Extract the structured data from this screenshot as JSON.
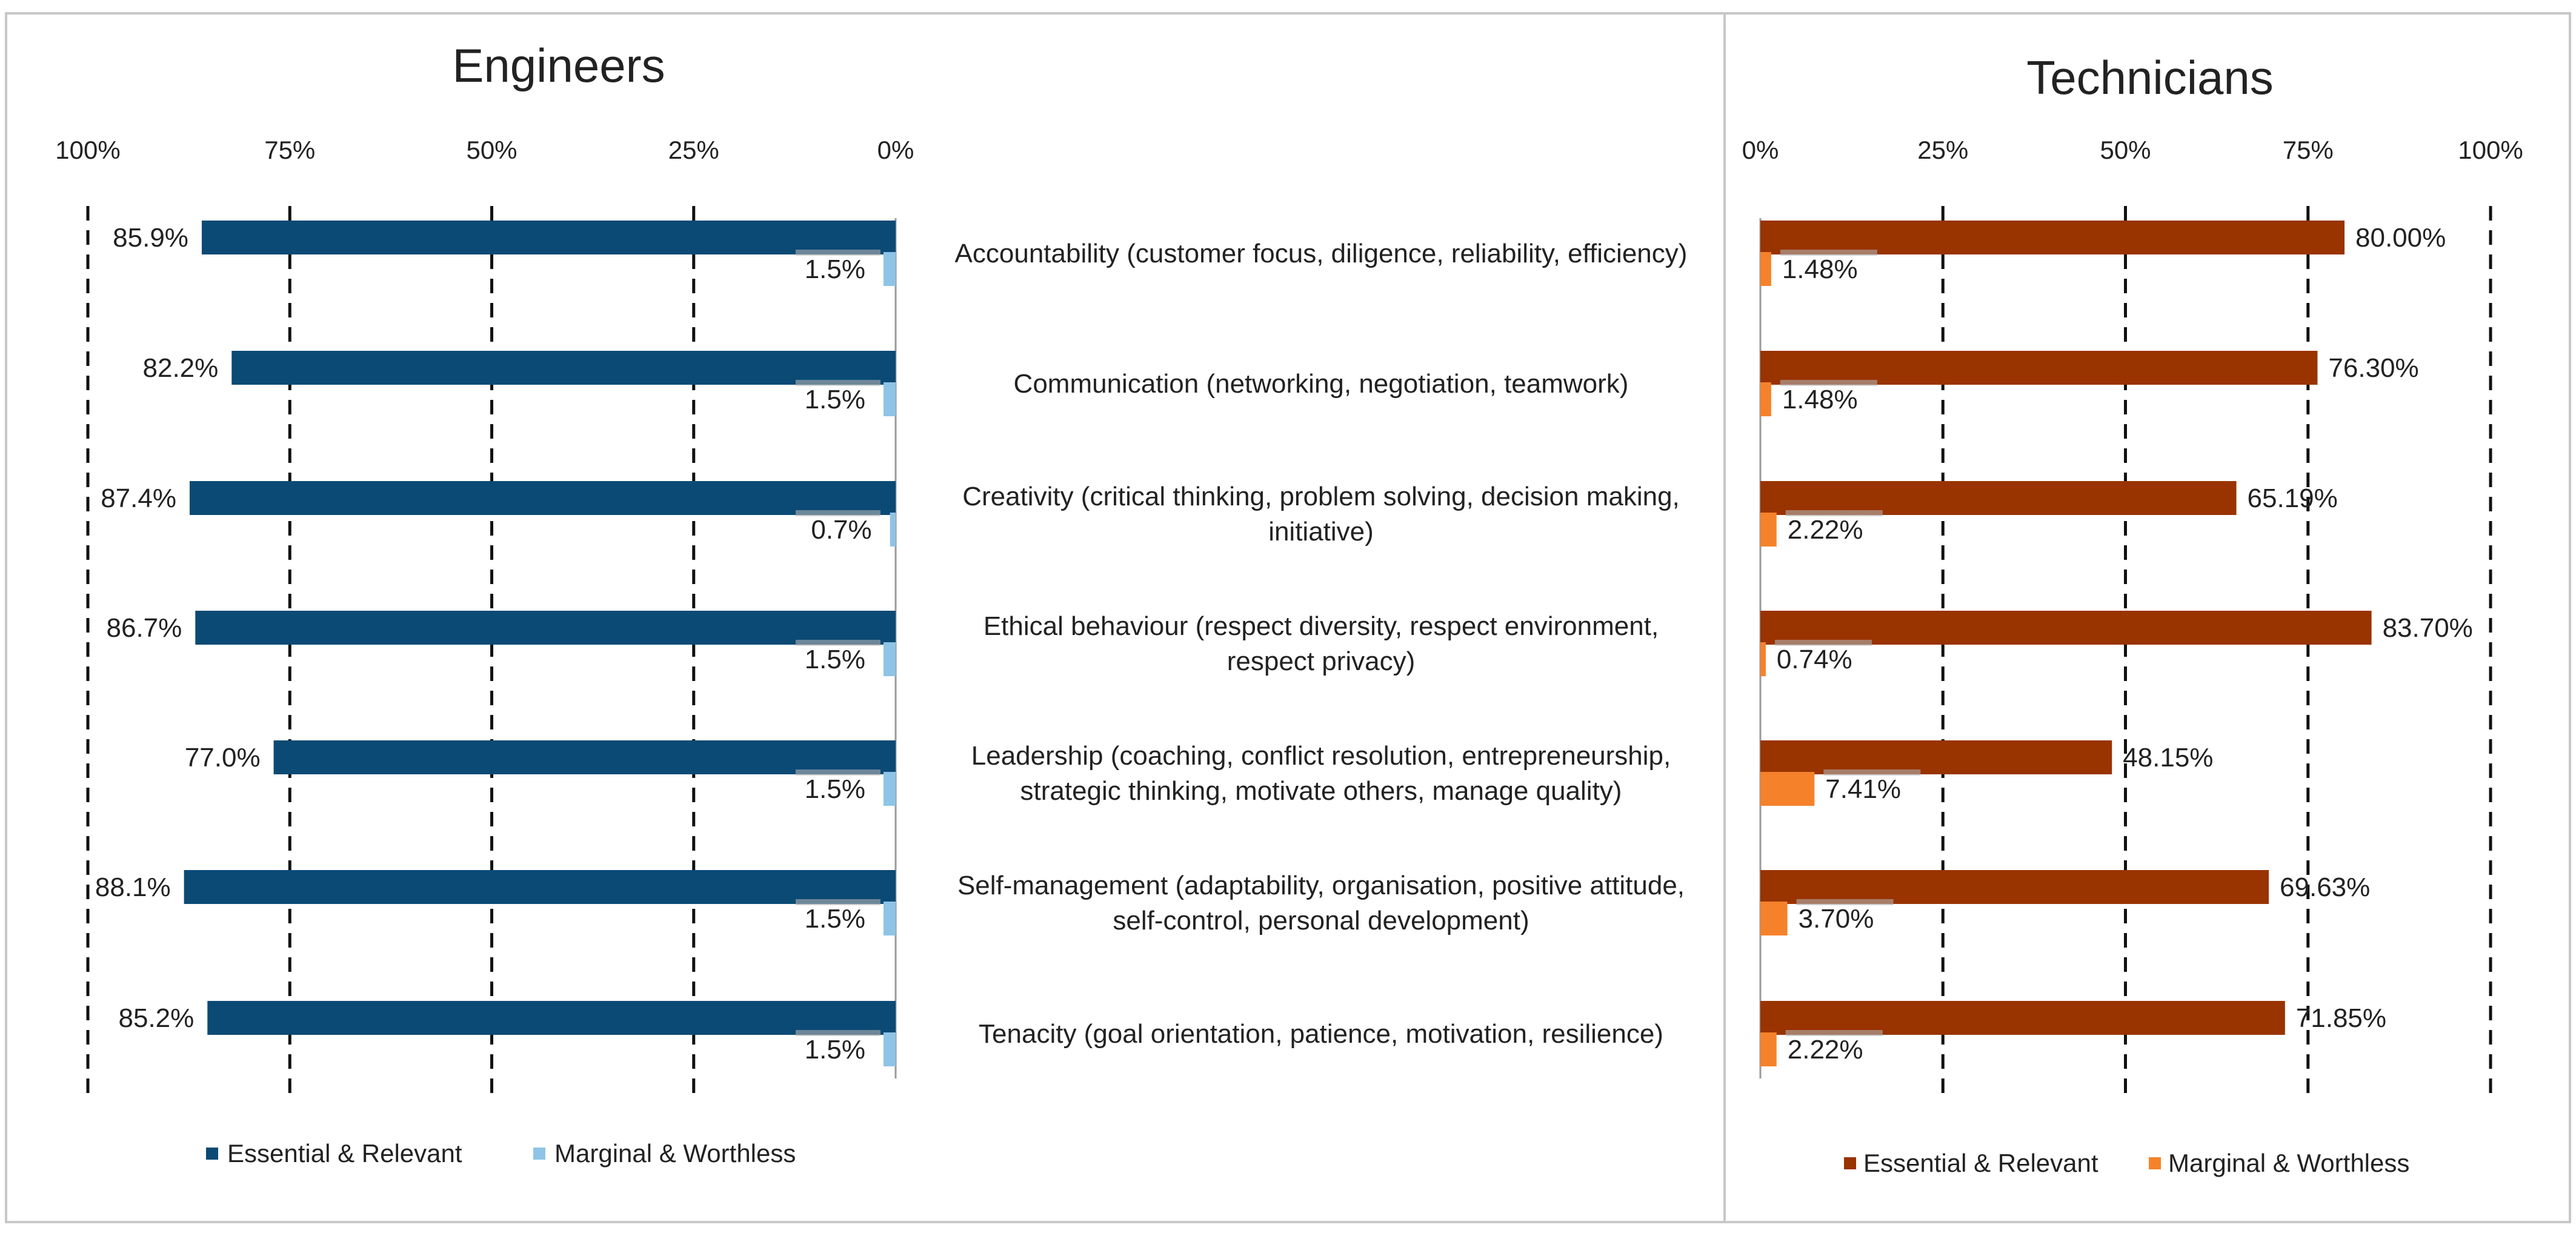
{
  "chart_data": [
    {
      "type": "bar",
      "orientation": "horizontal",
      "direction": "right-to-left",
      "title": "Engineers",
      "xlim": [
        0,
        100
      ],
      "ticks": [
        "100%",
        "75%",
        "50%",
        "25%",
        "0%"
      ],
      "grid": true,
      "legend_position": "bottom-left",
      "categories": [
        "Accountability (customer focus, diligence, reliability, efficiency)",
        "Communication (networking, negotiation, teamwork)",
        "Creativity (critical thinking, problem solving, decision making, initiative)",
        "Ethical behaviour (respect diversity, respect environment, respect privacy)",
        "Leadership (coaching, conflict resolution, entrepreneurship, strategic thinking, motivate others, manage quality)",
        "Self-management (adaptability, organisation, positive attitude, self-control, personal development)",
        "Tenacity (goal orientation, patience, motivation, resilience)"
      ],
      "series": [
        {
          "name": "Essential & Relevant",
          "color": "#0b4a75",
          "values": [
            85.9,
            82.2,
            87.4,
            86.7,
            77.0,
            88.1,
            85.2
          ],
          "labels": [
            "85.9%",
            "82.2%",
            "87.4%",
            "86.7%",
            "77.0%",
            "88.1%",
            "85.2%"
          ]
        },
        {
          "name": "Marginal & Worthless",
          "color": "#8ec4e6",
          "values": [
            1.5,
            1.5,
            0.7,
            1.5,
            1.5,
            1.5,
            1.5
          ],
          "labels": [
            "1.5%",
            "1.5%",
            "0.7%",
            "1.5%",
            "1.5%",
            "1.5%",
            "1.5%"
          ]
        }
      ]
    },
    {
      "type": "bar",
      "orientation": "horizontal",
      "direction": "left-to-right",
      "title": "Technicians",
      "xlim": [
        0,
        100
      ],
      "ticks": [
        "0%",
        "25%",
        "50%",
        "75%",
        "100%"
      ],
      "grid": true,
      "legend_position": "bottom",
      "categories": [
        "Accountability (customer focus, diligence, reliability, efficiency)",
        "Communication (networking, negotiation, teamwork)",
        "Creativity (critical thinking, problem solving, decision making, initiative)",
        "Ethical behaviour (respect diversity, respect environment, respect privacy)",
        "Leadership (coaching, conflict resolution, entrepreneurship, strategic thinking, motivate others, manage quality)",
        "Self-management (adaptability, organisation, positive attitude, self-control, personal development)",
        "Tenacity (goal orientation, patience, motivation, resilience)"
      ],
      "series": [
        {
          "name": "Essential & Relevant",
          "color": "#993300",
          "values": [
            80.0,
            76.3,
            65.19,
            83.7,
            48.15,
            69.63,
            71.85
          ],
          "labels": [
            "80.00%",
            "76.30%",
            "65.19%",
            "83.70%",
            "48.15%",
            "69.63%",
            "71.85%"
          ]
        },
        {
          "name": "Marginal & Worthless",
          "color": "#f5822b",
          "values": [
            1.48,
            1.48,
            2.22,
            0.74,
            7.41,
            3.7,
            2.22
          ],
          "labels": [
            "1.48%",
            "1.48%",
            "2.22%",
            "0.74%",
            "7.41%",
            "3.70%",
            "2.22%"
          ]
        }
      ]
    }
  ],
  "category_label_lines": [
    [
      "Accountability (customer focus, diligence, reliability, efficiency)"
    ],
    [
      "Communication (networking, negotiation, teamwork)"
    ],
    [
      "Creativity (critical thinking, problem solving, decision making,",
      "initiative)"
    ],
    [
      "Ethical behaviour (respect diversity, respect environment,",
      "respect privacy)"
    ],
    [
      "Leadership (coaching, conflict resolution, entrepreneurship,",
      "strategic thinking, motivate others, manage quality)"
    ],
    [
      "Self-management (adaptability, organisation, positive attitude,",
      "self-control, personal development)"
    ],
    [
      "Tenacity (goal orientation, patience, motivation, resilience)"
    ]
  ]
}
